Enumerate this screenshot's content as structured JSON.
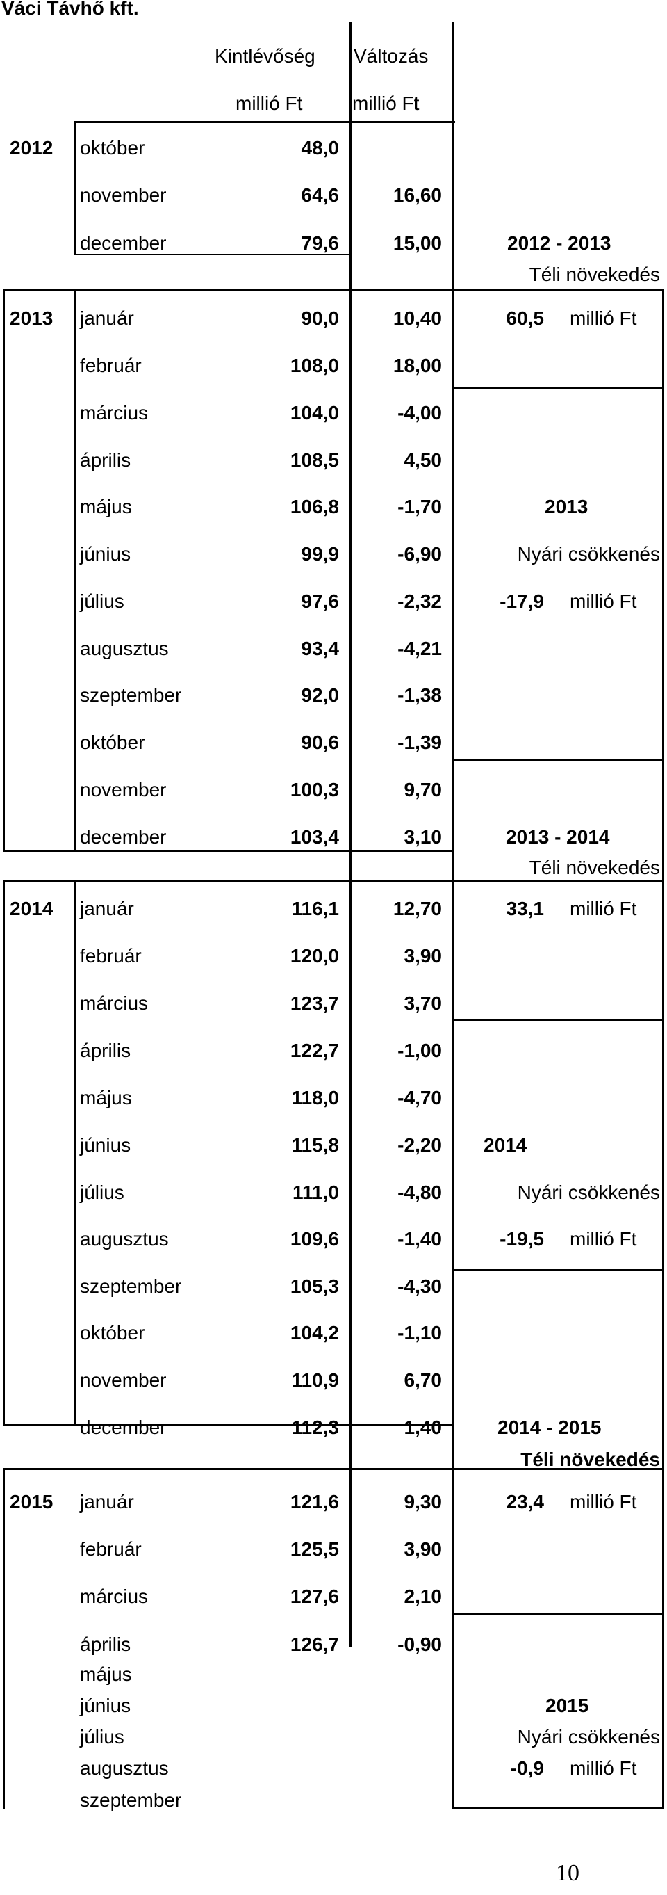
{
  "company": "Váci Távhő kft.",
  "headers": {
    "kintlevoseg": "Kintlévőség",
    "kintlevoseg_unit": "millió Ft",
    "valtozas": "Változás",
    "valtozas_unit": "millió Ft"
  },
  "rows": [
    {
      "year": "2012",
      "month": "október",
      "value": "48,0",
      "change": ""
    },
    {
      "year": "",
      "month": "november",
      "value": "64,6",
      "change": "16,60"
    },
    {
      "year": "",
      "month": "december",
      "value": "79,6",
      "change": "15,00"
    },
    {
      "year": "2013",
      "month": "január",
      "value": "90,0",
      "change": "10,40"
    },
    {
      "year": "",
      "month": "február",
      "value": "108,0",
      "change": "18,00"
    },
    {
      "year": "",
      "month": "március",
      "value": "104,0",
      "change": "-4,00"
    },
    {
      "year": "",
      "month": "április",
      "value": "108,5",
      "change": "4,50"
    },
    {
      "year": "",
      "month": "május",
      "value": "106,8",
      "change": "-1,70"
    },
    {
      "year": "",
      "month": "június",
      "value": "99,9",
      "change": "-6,90"
    },
    {
      "year": "",
      "month": "július",
      "value": "97,6",
      "change": "-2,32"
    },
    {
      "year": "",
      "month": "augusztus",
      "value": "93,4",
      "change": "-4,21"
    },
    {
      "year": "",
      "month": "szeptember",
      "value": "92,0",
      "change": "-1,38"
    },
    {
      "year": "",
      "month": "október",
      "value": "90,6",
      "change": "-1,39"
    },
    {
      "year": "",
      "month": "november",
      "value": "100,3",
      "change": "9,70"
    },
    {
      "year": "",
      "month": "december",
      "value": "103,4",
      "change": "3,10"
    },
    {
      "year": "2014",
      "month": "január",
      "value": "116,1",
      "change": "12,70"
    },
    {
      "year": "",
      "month": "február",
      "value": "120,0",
      "change": "3,90"
    },
    {
      "year": "",
      "month": "március",
      "value": "123,7",
      "change": "3,70"
    },
    {
      "year": "",
      "month": "április",
      "value": "122,7",
      "change": "-1,00"
    },
    {
      "year": "",
      "month": "május",
      "value": "118,0",
      "change": "-4,70"
    },
    {
      "year": "",
      "month": "június",
      "value": "115,8",
      "change": "-2,20"
    },
    {
      "year": "",
      "month": "július",
      "value": "111,0",
      "change": "-4,80"
    },
    {
      "year": "",
      "month": "augusztus",
      "value": "109,6",
      "change": "-1,40"
    },
    {
      "year": "",
      "month": "szeptember",
      "value": "105,3",
      "change": "-4,30"
    },
    {
      "year": "",
      "month": "október",
      "value": "104,2",
      "change": "-1,10"
    },
    {
      "year": "",
      "month": "november",
      "value": "110,9",
      "change": "6,70"
    },
    {
      "year": "",
      "month": "december",
      "value": "112,3",
      "change": "1,40"
    },
    {
      "year": "2015",
      "month": "január",
      "value": "121,6",
      "change": "9,30"
    },
    {
      "year": "",
      "month": "február",
      "value": "125,5",
      "change": "3,90"
    },
    {
      "year": "",
      "month": "március",
      "value": "127,6",
      "change": "2,10"
    },
    {
      "year": "",
      "month": "április",
      "value": "126,7",
      "change": "-0,90"
    }
  ],
  "extra_months": [
    "május",
    "június",
    "július",
    "augusztus",
    "szeptember"
  ],
  "summaries": [
    {
      "period": "2012 - 2013",
      "label": "Téli növekedés",
      "amount": "60,5",
      "unit": "millió Ft"
    },
    {
      "period": "2013",
      "label": "Nyári csökkenés",
      "amount": "-17,9",
      "unit": "millió Ft"
    },
    {
      "period": "2013 - 2014",
      "label": "Téli növekedés",
      "amount": "33,1",
      "unit": "millió Ft"
    },
    {
      "period": "2014",
      "label": "Nyári csökkenés",
      "amount": "-19,5",
      "unit": "millió Ft"
    },
    {
      "period": "2014 - 2015",
      "label": "Téli növekedés",
      "amount": "23,4",
      "unit": "millió Ft"
    },
    {
      "period": "2015",
      "label": "Nyári csökkenés",
      "amount": "-0,9",
      "unit": "millió Ft"
    }
  ],
  "page_number": "10"
}
